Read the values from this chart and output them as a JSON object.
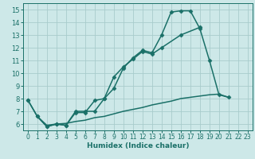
{
  "xlabel": "Humidex (Indice chaleur)",
  "xlim": [
    -0.5,
    23.5
  ],
  "ylim": [
    5.5,
    15.5
  ],
  "yticks": [
    6,
    7,
    8,
    9,
    10,
    11,
    12,
    13,
    14,
    15
  ],
  "xticks": [
    0,
    1,
    2,
    3,
    4,
    5,
    6,
    7,
    8,
    9,
    10,
    11,
    12,
    13,
    14,
    15,
    16,
    17,
    18,
    19,
    20,
    21,
    22,
    23
  ],
  "bg_color": "#cde8e8",
  "grid_color": "#a8cccc",
  "line_color": "#1a7068",
  "line1_x": [
    0,
    1,
    2,
    3,
    4,
    5,
    6,
    7,
    8,
    9,
    10,
    11,
    12,
    13,
    14,
    15,
    16,
    17,
    18,
    19,
    20,
    21
  ],
  "line1_y": [
    7.9,
    6.6,
    5.8,
    6.0,
    5.9,
    7.0,
    7.0,
    7.0,
    8.0,
    8.8,
    10.4,
    11.2,
    11.8,
    11.6,
    13.0,
    14.8,
    14.9,
    14.9,
    13.5,
    11.0,
    8.3,
    8.1
  ],
  "line2_x": [
    0,
    1,
    2,
    3,
    4,
    5,
    6,
    7,
    8,
    9,
    10,
    11,
    12,
    13,
    14,
    16,
    18
  ],
  "line2_y": [
    7.9,
    6.6,
    5.8,
    6.0,
    5.9,
    6.9,
    6.9,
    7.85,
    8.0,
    9.7,
    10.5,
    11.1,
    11.7,
    11.5,
    12.0,
    13.0,
    13.6
  ],
  "line3_x": [
    1,
    2,
    3,
    4,
    5,
    6,
    7,
    8,
    9,
    10,
    11,
    12,
    13,
    14,
    15,
    16,
    17,
    18,
    19,
    20,
    21
  ],
  "line3_y": [
    6.6,
    5.9,
    6.0,
    6.05,
    6.2,
    6.3,
    6.5,
    6.6,
    6.8,
    7.0,
    7.15,
    7.3,
    7.5,
    7.65,
    7.8,
    8.0,
    8.1,
    8.2,
    8.3,
    8.35,
    8.1
  ]
}
